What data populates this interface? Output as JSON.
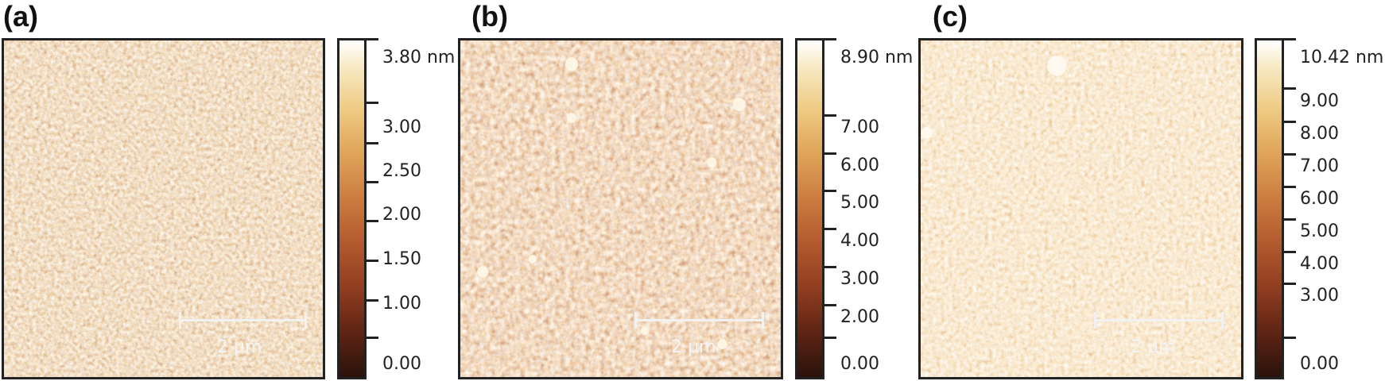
{
  "panels": [
    {
      "label": "(a)",
      "scale_bar": "2 µm",
      "colorbar": {
        "max_label": "3.80 nm",
        "ticks": [
          "3.00",
          "2.50",
          "2.00",
          "1.50",
          "1.00",
          "0.00"
        ]
      }
    },
    {
      "label": "(b)",
      "scale_bar": "2 µm",
      "colorbar": {
        "max_label": "8.90 nm",
        "ticks": [
          "7.00",
          "6.00",
          "5.00",
          "4.00",
          "3.00",
          "2.00",
          "0.00"
        ]
      }
    },
    {
      "label": "(c)",
      "scale_bar": "2 µm",
      "colorbar": {
        "max_label": "10.42 nm",
        "ticks": [
          "9.00",
          "8.00",
          "7.00",
          "6.00",
          "5.00",
          "4.00",
          "3.00",
          "0.00"
        ]
      }
    }
  ],
  "colors": {
    "colormap": [
      "#2a120c",
      "#5e2414",
      "#8f3d20",
      "#b35a2e",
      "#cd7f41",
      "#e0a65a",
      "#efcc85",
      "#f7e9c3",
      "#ffffff"
    ]
  }
}
